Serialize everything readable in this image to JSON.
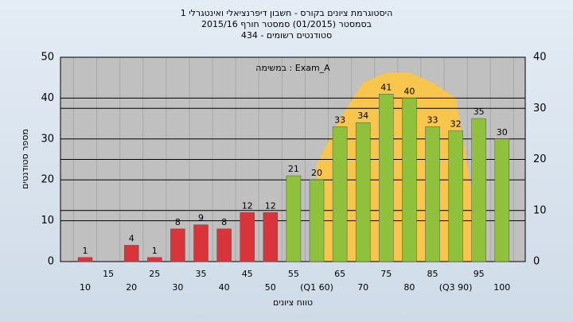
{
  "chart_data": {
    "type": "bar",
    "title_lines": [
      "היסטוגרמת ציונים בקורס - חשבון דיפרנציאלי ואינטגרלי 1",
      "בסמסטר  (01/2015)  סמסטר חורף 2015/16",
      "סטודנטים רשומים - 434"
    ],
    "annotation": "במשימה : Exam_A",
    "y_label": "מספר סטודנטים",
    "x_label": "טווח ציונים",
    "categories": [
      "10",
      "15",
      "20",
      "25",
      "30",
      "35",
      "40",
      "45",
      "50",
      "55",
      "(Q1 60)",
      "65",
      "70",
      "75",
      "80",
      "85",
      "(Q3 90)",
      "95",
      "100"
    ],
    "values": [
      1,
      0,
      4,
      1,
      8,
      9,
      8,
      12,
      12,
      21,
      20,
      33,
      34,
      41,
      40,
      33,
      32,
      35,
      30
    ],
    "colors": [
      "#d8343a",
      "#d8343a",
      "#d8343a",
      "#d8343a",
      "#d8343a",
      "#d8343a",
      "#d8343a",
      "#d8343a",
      "#d8343a",
      "#8fc13c",
      "#8fc13c",
      "#8fc13c",
      "#8fc13c",
      "#8fc13c",
      "#8fc13c",
      "#8fc13c",
      "#8fc13c",
      "#8fc13c",
      "#8fc13c"
    ],
    "area": {
      "color": "#f8c54d",
      "axis": "y2",
      "values": [
        null,
        null,
        null,
        null,
        null,
        null,
        null,
        null,
        null,
        null,
        19,
        28,
        35,
        37,
        37,
        35,
        32,
        6,
        null
      ]
    },
    "ylim": [
      0,
      50
    ],
    "yticks": [
      0,
      10,
      20,
      30,
      40,
      50
    ],
    "y2lim": [
      0,
      40
    ],
    "y2ticks": [
      0,
      10,
      20,
      30,
      40
    ],
    "grid": true
  }
}
